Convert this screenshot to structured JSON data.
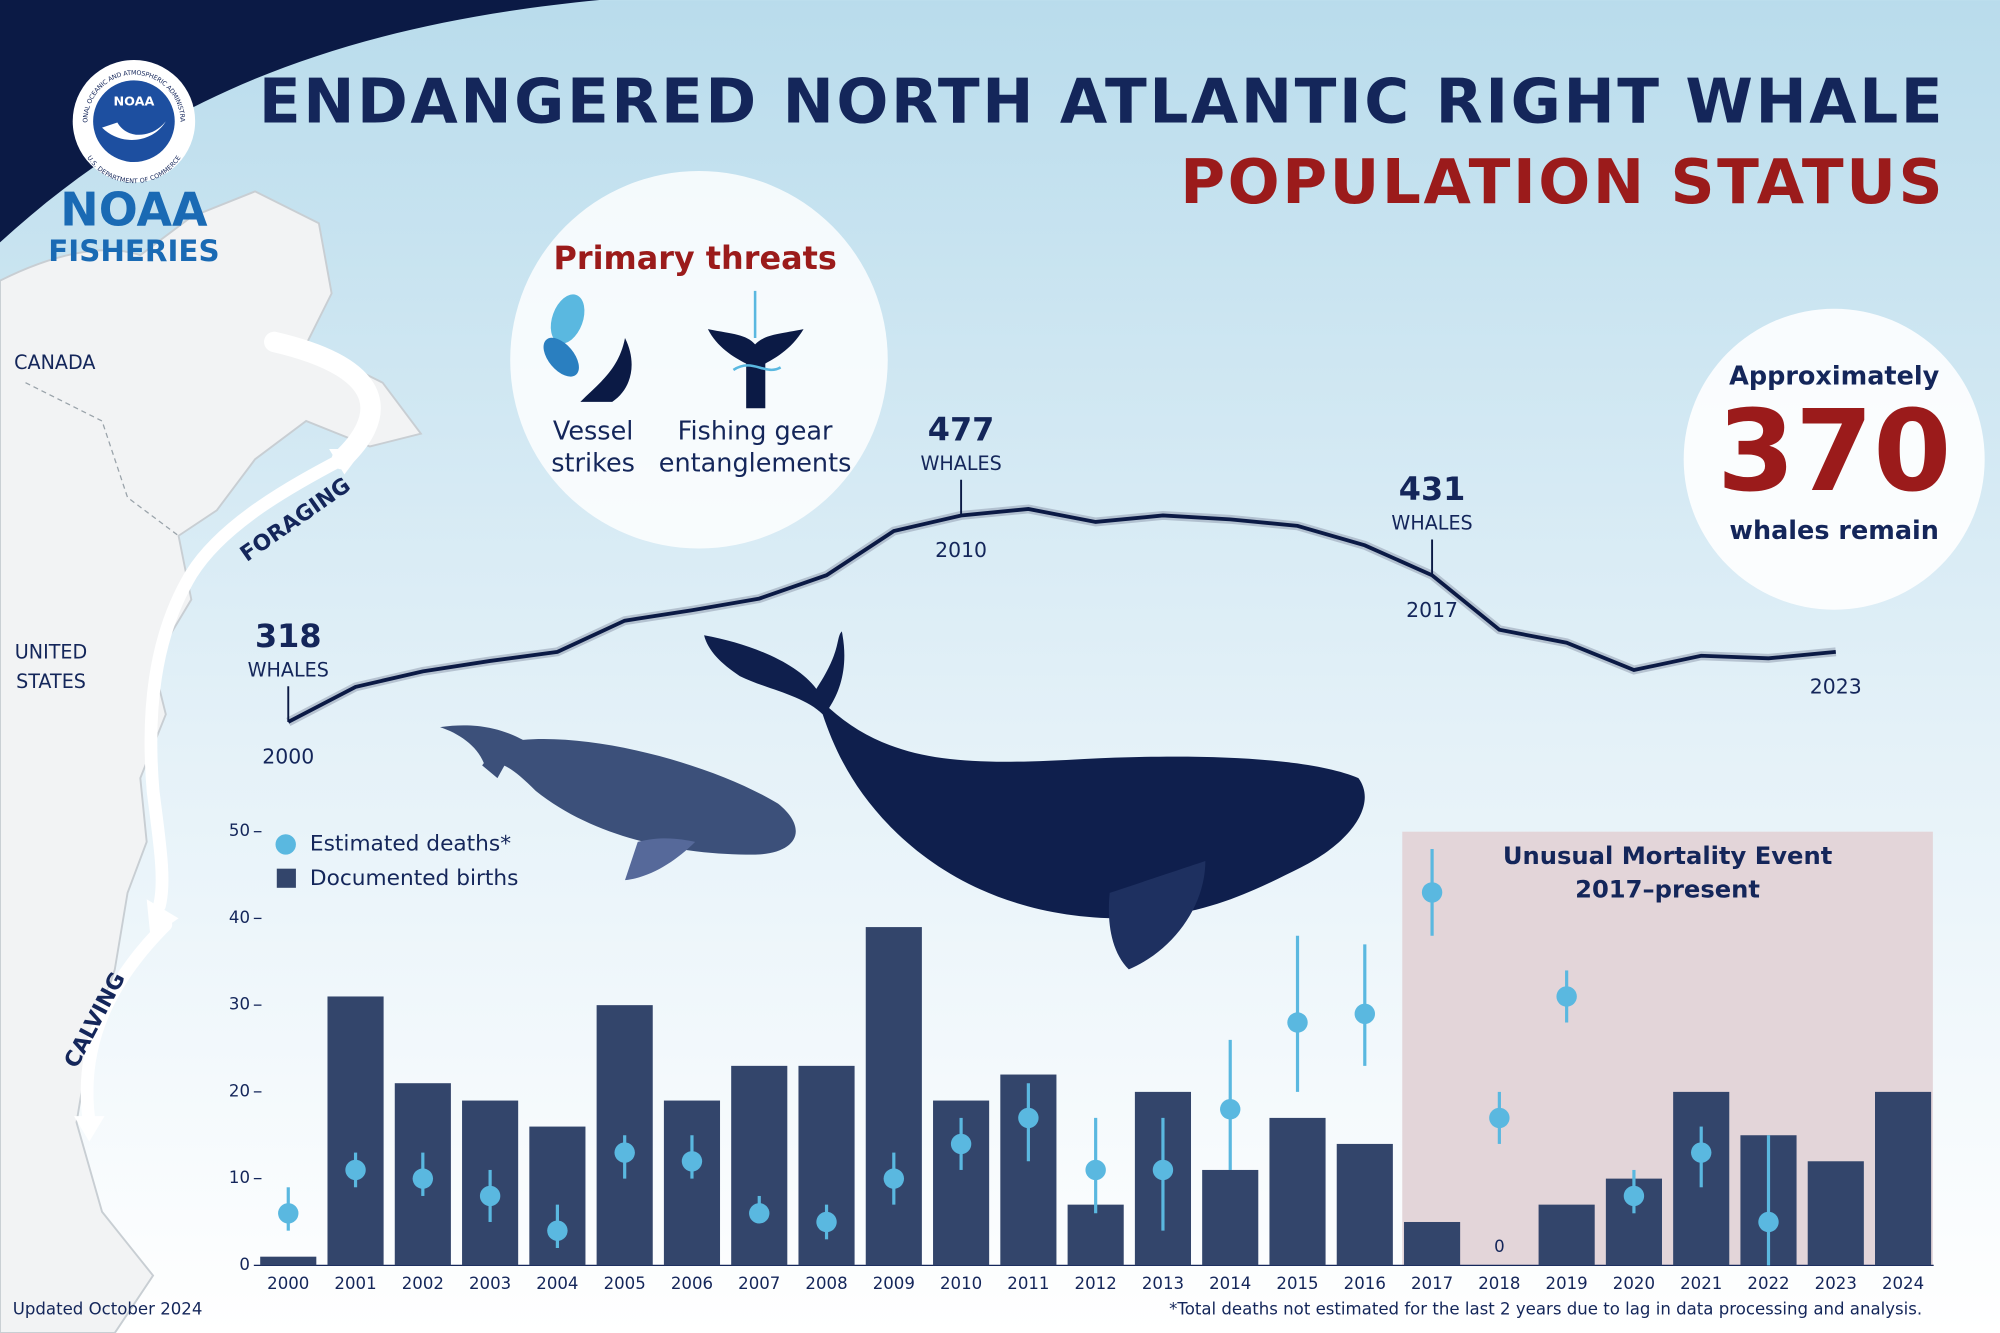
{
  "header": {
    "title": "ENDANGERED NORTH ATLANTIC RIGHT WHALE",
    "subtitle": "POPULATION STATUS"
  },
  "logo": {
    "seal": "NOAA",
    "ring_top": "NATIONAL OCEANIC AND ATMOSPHERIC ADMINISTRATION",
    "ring_bottom": "U.S. DEPARTMENT OF COMMERCE",
    "name": "NOAA",
    "division": "FISHERIES"
  },
  "map": {
    "country_1": "CANADA",
    "country_2_line_1": "UNITED",
    "country_2_line_2": "STATES",
    "route_1": "FORAGING",
    "route_2": "CALVING"
  },
  "threats": {
    "title": "Primary threats",
    "items": [
      {
        "lines": [
          "Vessel",
          "strikes"
        ]
      },
      {
        "lines": [
          "Fishing gear",
          "entanglements"
        ]
      }
    ]
  },
  "remaining": {
    "prefix": "Approximately",
    "value": 370,
    "suffix": "whales remain"
  },
  "chart_data": [
    {
      "type": "line",
      "unit_label": "WHALES",
      "color": "#0b1a45",
      "x": [
        2000,
        2001,
        2002,
        2003,
        2004,
        2005,
        2006,
        2007,
        2008,
        2009,
        2010,
        2011,
        2012,
        2013,
        2014,
        2015,
        2016,
        2017,
        2018,
        2019,
        2020,
        2021,
        2022,
        2023
      ],
      "values": [
        318,
        345,
        357,
        365,
        372,
        396,
        404,
        413,
        431,
        465,
        477,
        482,
        472,
        477,
        474,
        469,
        454,
        431,
        389,
        379,
        358,
        369,
        367,
        372
      ]
    },
    {
      "type": "bar",
      "x": [
        2000,
        2001,
        2002,
        2003,
        2004,
        2005,
        2006,
        2007,
        2008,
        2009,
        2010,
        2011,
        2012,
        2013,
        2014,
        2015,
        2016,
        2017,
        2018,
        2019,
        2020,
        2021,
        2022,
        2023,
        2024
      ],
      "series": [
        {
          "name": "Estimated deaths*",
          "type": "scatter",
          "color": "#5ab8e0",
          "values": [
            6,
            11,
            10,
            8,
            4,
            13,
            12,
            6,
            5,
            10,
            14,
            17,
            11,
            11,
            18,
            28,
            29,
            43,
            17,
            31,
            8,
            13,
            5,
            null,
            null
          ],
          "lower": [
            4,
            9,
            8,
            5,
            2,
            10,
            10,
            5,
            3,
            7,
            11,
            12,
            6,
            4,
            11,
            20,
            23,
            38,
            14,
            28,
            6,
            9,
            0,
            null,
            null
          ],
          "upper": [
            9,
            13,
            13,
            11,
            7,
            15,
            15,
            8,
            7,
            13,
            17,
            21,
            17,
            17,
            26,
            38,
            37,
            48,
            20,
            34,
            11,
            16,
            15,
            null,
            null
          ]
        },
        {
          "name": "Documented births",
          "type": "bar",
          "color": "#33456b",
          "values": [
            1,
            31,
            21,
            19,
            16,
            30,
            19,
            23,
            23,
            39,
            19,
            22,
            7,
            20,
            11,
            17,
            14,
            5,
            0,
            7,
            10,
            20,
            15,
            12,
            20
          ]
        }
      ],
      "ylim": [
        0,
        50
      ],
      "yticks": [
        0,
        10,
        20,
        30,
        40,
        50
      ],
      "legend": "upper left",
      "span": {
        "range": [
          2017,
          2024
        ],
        "lines": [
          "Unusual Mortality Event",
          "2017–present"
        ],
        "color": "#e3d5d9"
      }
    }
  ],
  "footer": {
    "updated": "Updated October 2024",
    "note": "*Total deaths not estimated for the last 2 years due to lag in data processing and analysis."
  }
}
